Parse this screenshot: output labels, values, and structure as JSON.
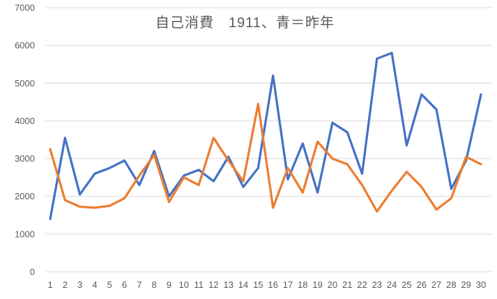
{
  "colors": {
    "series_blue": "#4472C4",
    "series_orange": "#ED7D31",
    "gridline": "#D9D9D9",
    "axis_text": "#595959",
    "title_text": "#595959",
    "background": "#FFFFFF"
  },
  "chart_data": {
    "type": "line",
    "title": "自己消費　1911、青＝昨年",
    "xlabel": "",
    "ylabel": "",
    "ylim": [
      0,
      7000
    ],
    "ytick_interval": 1000,
    "grid": "horizontal",
    "legend_position": "none",
    "categories": [
      1,
      2,
      3,
      4,
      5,
      6,
      7,
      8,
      9,
      10,
      11,
      12,
      13,
      14,
      15,
      16,
      17,
      18,
      19,
      20,
      21,
      22,
      23,
      24,
      25,
      26,
      27,
      28,
      29,
      30
    ],
    "series": [
      {
        "name": "昨年 (blue)",
        "color": "#4472C4",
        "values": [
          1400,
          3550,
          2050,
          2600,
          2750,
          2950,
          2300,
          3200,
          2000,
          2550,
          2700,
          2400,
          3050,
          2250,
          2750,
          5200,
          2450,
          3400,
          2100,
          3950,
          3700,
          2600,
          5650,
          5800,
          3350,
          4700,
          4300,
          2200,
          2950,
          4700
        ]
      },
      {
        "name": "1911 (orange)",
        "color": "#ED7D31",
        "values": [
          3250,
          1900,
          1725,
          1700,
          1750,
          1950,
          2550,
          3100,
          1850,
          2500,
          2300,
          3550,
          2950,
          2400,
          4450,
          1700,
          2750,
          2100,
          3450,
          3000,
          2850,
          2300,
          1600,
          2150,
          2650,
          2250,
          1650,
          1950,
          3050,
          2850
        ]
      }
    ]
  }
}
